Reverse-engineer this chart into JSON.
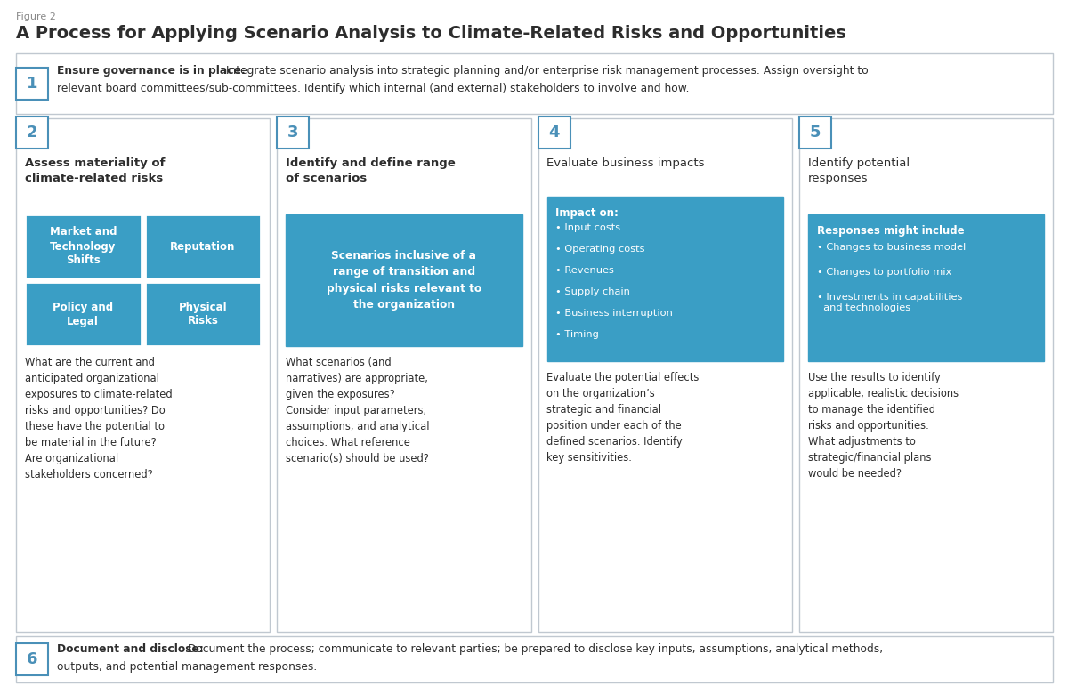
{
  "figure_label": "Figure 2",
  "title": "A Process for Applying Scenario Analysis to Climate-Related Risks and Opportunities",
  "bg_color": "#ffffff",
  "border_color": "#4a90b8",
  "box_bg": "#3a9ec5",
  "text_dark": "#2d2d2d",
  "text_light": "#ffffff",
  "num_color": "#4a90b8",
  "gray_border": "#c0c8d0",
  "step1_bold": "Ensure governance is in place:",
  "step1_line1": " Integrate scenario analysis into strategic planning and/or enterprise risk management processes. Assign oversight to",
  "step1_line2": "relevant board committees/sub-committees. Identify which internal (and external) stakeholders to involve and how.",
  "step6_bold": "Document and disclose:",
  "step6_line1": " Document the process; communicate to relevant parties; be prepared to disclose key inputs, assumptions, analytical methods,",
  "step6_line2": "outputs, and potential management responses.",
  "col2_title": "Assess materiality of\nclimate-related risks",
  "col2_cells": [
    [
      "Market and\nTechnology\nShifts",
      "Reputation"
    ],
    [
      "Policy and\nLegal",
      "Physical\nRisks"
    ]
  ],
  "col2_body": "What are the current and\nanticipated organizational\nexposures to climate-related\nrisks and opportunities? Do\nthese have the potential to\nbe material in the future?\nAre organizational\nstakeholders concerned?",
  "col3_title": "Identify and define range\nof scenarios",
  "col3_blue": "Scenarios inclusive of a\nrange of transition and\nphysical risks relevant to\nthe organization",
  "col3_body": "What scenarios (and\nnarratives) are appropriate,\ngiven the exposures?\nConsider input parameters,\nassumptions, and analytical\nchoices. What reference\nscenario(s) should be used?",
  "col4_title": "Evaluate business impacts",
  "col4_hdr": "Impact on:",
  "col4_items": [
    "Input costs",
    "Operating costs",
    "Revenues",
    "Supply chain",
    "Business interruption",
    "Timing"
  ],
  "col4_body": "Evaluate the potential effects\non the organization’s\nstrategic and financial\nposition under each of the\ndefined scenarios. Identify\nkey sensitivities.",
  "col5_title": "Identify potential\nresponses",
  "col5_hdr": "Responses might include",
  "col5_items": [
    "Changes to business model",
    "Changes to portfolio mix",
    "Investments in capabilities\n  and technologies"
  ],
  "col5_body": "Use the results to identify\napplicable, realistic decisions\nto manage the identified\nrisks and opportunities.\nWhat adjustments to\nstrategic/financial plans\nwould be needed?"
}
